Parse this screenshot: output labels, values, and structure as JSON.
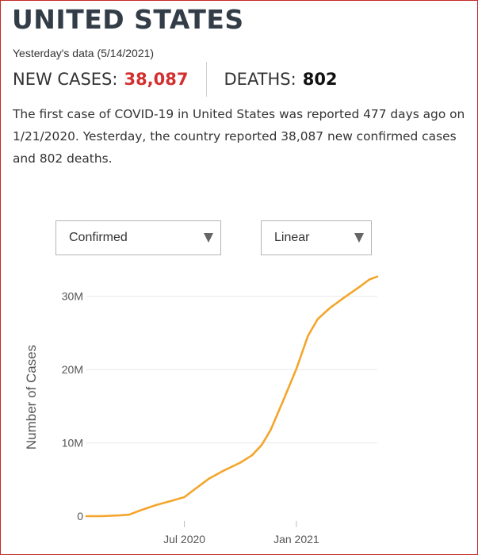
{
  "header": {
    "title": "UNITED STATES",
    "data_date": "Yesterday's data (5/14/2021)"
  },
  "stats": {
    "new_cases_label": "NEW CASES:",
    "new_cases_value": "38,087",
    "deaths_label": "DEATHS:",
    "deaths_value": "802"
  },
  "summary": {
    "p1": "The first case of ",
    "disease": "COVID-19",
    "p2": " in United States was reported 477 days ago on 1/21/2020. Yesterday, the country reported 38,087 new confirmed cases and 802 deaths."
  },
  "controls": {
    "metric_selected": "Confirmed",
    "scale_selected": "Linear"
  },
  "colors": {
    "accent_red": "#d32f2f",
    "line": "#f4a52c",
    "title": "#333d47",
    "frame_border": "#c62828"
  },
  "chart_data": {
    "type": "line",
    "title": "",
    "xlabel": "",
    "ylabel": "Number of Cases",
    "x_ticks": [
      "Jul 2020",
      "Jan 2021"
    ],
    "y_ticks": [
      "0",
      "10M",
      "20M",
      "30M"
    ],
    "y_tick_values": [
      0,
      10000000,
      20000000,
      30000000
    ],
    "ylim": [
      0,
      33000000
    ],
    "grid": true,
    "legend": "none",
    "series": [
      {
        "x": [
          "2020-01-22",
          "2020-02-15",
          "2020-03-15",
          "2020-04-01",
          "2020-04-20",
          "2020-05-15",
          "2020-06-10",
          "2020-07-01",
          "2020-07-20",
          "2020-08-10",
          "2020-09-01",
          "2020-10-01",
          "2020-10-20",
          "2020-11-05",
          "2020-11-20",
          "2020-12-10",
          "2021-01-01",
          "2021-01-20",
          "2021-02-05",
          "2021-02-25",
          "2021-03-20",
          "2021-04-15",
          "2021-05-01",
          "2021-05-14"
        ],
        "values": [
          0,
          0,
          100000,
          200000,
          800000,
          1500000,
          2100000,
          2600000,
          3800000,
          5100000,
          6100000,
          7300000,
          8300000,
          9700000,
          11800000,
          15700000,
          20100000,
          24600000,
          26900000,
          28400000,
          29800000,
          31300000,
          32300000,
          32700000
        ]
      }
    ]
  }
}
